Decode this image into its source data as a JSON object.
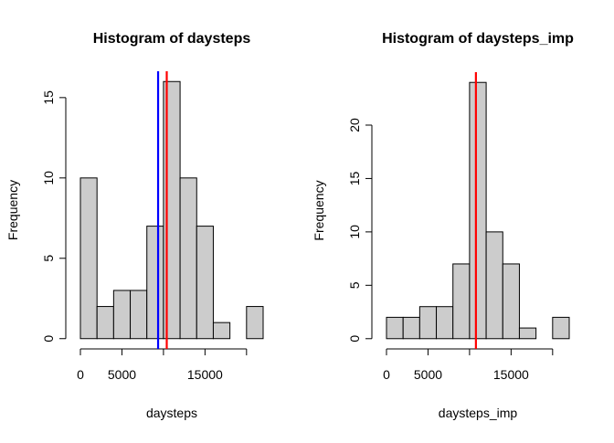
{
  "chart_data": [
    {
      "type": "histogram",
      "title": "Histogram of daysteps",
      "x_label": "daysteps",
      "y_label": "Frequency",
      "bins": [
        0,
        2000,
        4000,
        6000,
        8000,
        10000,
        12000,
        14000,
        16000,
        18000,
        20000,
        22000
      ],
      "counts": [
        10,
        2,
        3,
        3,
        7,
        16,
        10,
        7,
        1,
        0,
        2
      ],
      "color": "#cccccc",
      "xlim": [
        -880,
        22880
      ],
      "ylim": [
        -0.64,
        16.64
      ],
      "xticks": [
        0,
        5000,
        {
          "value": 10000,
          "label": null
        },
        15000,
        {
          "value": 20000,
          "label": null
        }
      ],
      "yticks": [
        0,
        5,
        10,
        15
      ],
      "vlines": [
        {
          "value": 9354,
          "color": "#0000ff"
        },
        {
          "value": 10395,
          "color": "#ff0000"
        }
      ]
    },
    {
      "type": "histogram",
      "title": "Histogram of daysteps_imp",
      "x_label": "daysteps_imp",
      "y_label": "Frequency",
      "bins": [
        0,
        2000,
        4000,
        6000,
        8000,
        10000,
        12000,
        14000,
        16000,
        18000,
        20000,
        22000
      ],
      "counts": [
        2,
        2,
        3,
        3,
        7,
        24,
        10,
        7,
        1,
        0,
        2
      ],
      "color": "#cccccc",
      "xlim": [
        -880,
        22880
      ],
      "ylim": [
        -0.96,
        24.96
      ],
      "xticks": [
        0,
        5000,
        {
          "value": 10000,
          "label": null
        },
        15000,
        {
          "value": 20000,
          "label": null
        }
      ],
      "yticks": [
        0,
        5,
        10,
        15,
        20
      ],
      "vlines": [
        {
          "value": 10766,
          "color": "#ff0000"
        }
      ]
    }
  ]
}
